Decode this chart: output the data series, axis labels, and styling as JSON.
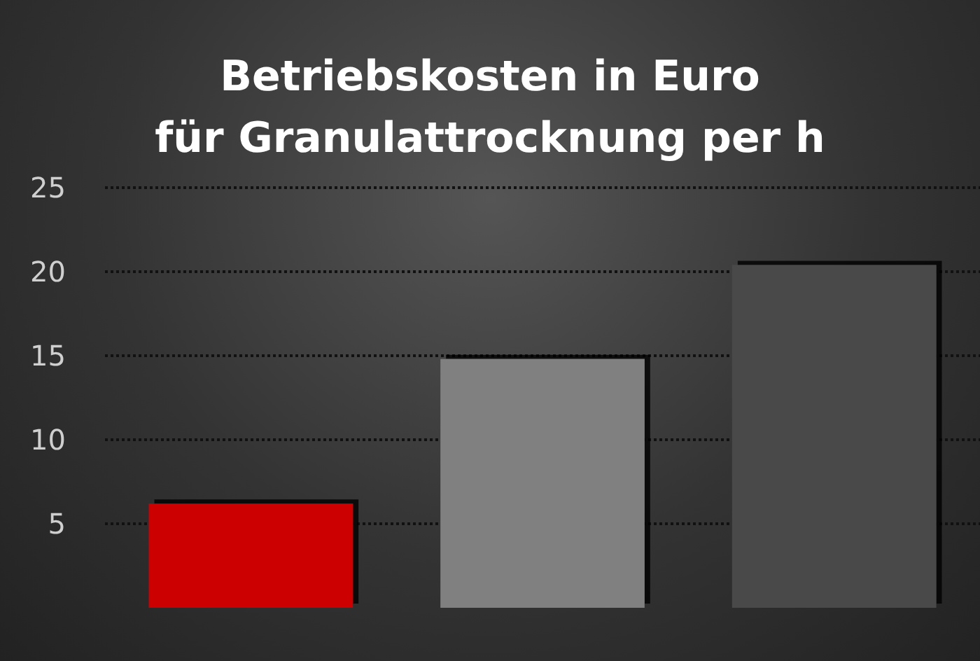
{
  "chart_data": {
    "type": "bar",
    "title": "Betriebskosten in Euro\nfür Granulattrocknung per h",
    "categories": [
      null,
      null,
      null
    ],
    "values": [
      6.2,
      14.8,
      20.4
    ],
    "colors": [
      "#cc0000",
      "#808080",
      "#4a4a4a"
    ],
    "ylim": [
      0,
      25
    ],
    "yticks": [
      5,
      10,
      15,
      20,
      25
    ],
    "grid": "y"
  }
}
